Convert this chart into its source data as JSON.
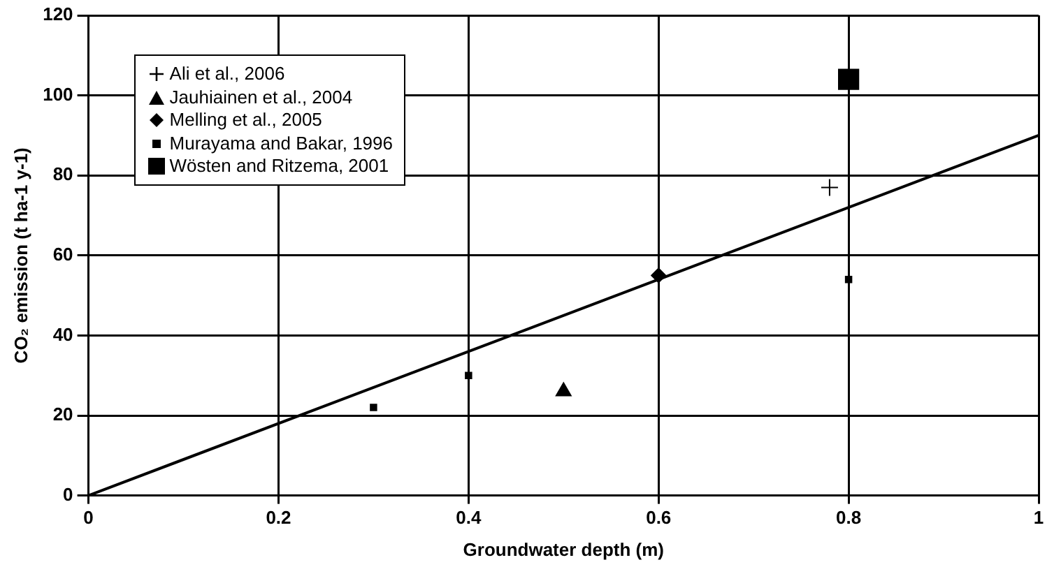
{
  "chart_data": {
    "type": "scatter",
    "xlabel": "Groundwater depth (m)",
    "ylabel": "CO₂ emission (t ha-1 y-1)",
    "xlim": [
      0,
      1
    ],
    "xticks": [
      0,
      0.2,
      0.4,
      0.6,
      0.8,
      1
    ],
    "ylim": [
      0,
      120
    ],
    "yticks": [
      0,
      20,
      40,
      60,
      80,
      100,
      120
    ],
    "grid": true,
    "legend": "top left",
    "series": [
      {
        "name": "Ali et al., 2006",
        "color": "#000000",
        "marker": "cross",
        "x": [
          0.78
        ],
        "values": [
          77
        ]
      },
      {
        "name": "Jauhiainen et al., 2004",
        "color": "#000000",
        "marker": "triangle",
        "x": [
          0.5
        ],
        "values": [
          26
        ]
      },
      {
        "name": "Melling et al., 2005",
        "color": "#000000",
        "marker": "diamond",
        "x": [
          0.6
        ],
        "values": [
          55
        ]
      },
      {
        "name": "Murayama and Bakar, 1996",
        "color": "#000000",
        "marker": "square",
        "x": [
          0.3,
          0.4,
          0.8
        ],
        "values": [
          22,
          30,
          54
        ]
      },
      {
        "name": "Wösten and Ritzema, 2001",
        "color": "#000000",
        "marker": "square",
        "x": [
          0.8
        ],
        "values": [
          104
        ]
      },
      {
        "type": "line",
        "color": "#000000",
        "marker": "none",
        "x": [
          0,
          1
        ],
        "values": [
          0,
          90
        ]
      }
    ]
  }
}
